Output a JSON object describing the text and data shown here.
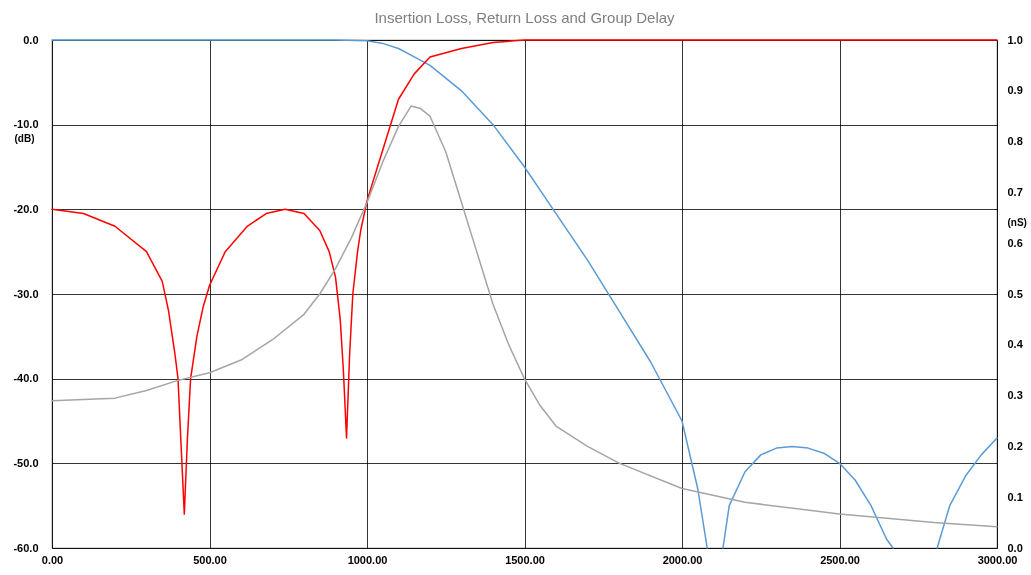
{
  "chart_data": {
    "type": "line",
    "title": "Insertion Loss, Return Loss and Group Delay",
    "ylabel": "(dB)",
    "y2label": "(nS)",
    "xlim": [
      0,
      3000
    ],
    "xticks": [
      {
        "value": 0,
        "label": "0.00"
      },
      {
        "value": 500,
        "label": "500.00"
      },
      {
        "value": 1000,
        "label": "1000.00"
      },
      {
        "value": 1500,
        "label": "1500.00"
      },
      {
        "value": 2000,
        "label": "2000.00"
      },
      {
        "value": 2500,
        "label": "2500.00"
      },
      {
        "value": 3000,
        "label": "3000.00"
      }
    ],
    "ylim": [
      -60,
      0
    ],
    "yticks": [
      {
        "value": -60,
        "label": "-60.0"
      },
      {
        "value": -50,
        "label": "-50.0"
      },
      {
        "value": -40,
        "label": "-40.0"
      },
      {
        "value": -30,
        "label": "-30.0"
      },
      {
        "value": -20,
        "label": "-20.0"
      },
      {
        "value": -10,
        "label": "-10.0"
      },
      {
        "value": 0,
        "label": "0.0"
      }
    ],
    "y2lim": [
      0,
      1
    ],
    "y2ticks": [
      {
        "value": 0,
        "label": "0.0"
      },
      0.1,
      0.2,
      0.3,
      0.4,
      0.5,
      0.6,
      0.7,
      0.8,
      0.9,
      {
        "value": 1,
        "label": "1.0"
      }
    ],
    "grid": true,
    "marker": "none",
    "line_style": "solid",
    "series": [
      {
        "type": "line",
        "color": "#5b9bd5",
        "x": [
          0,
          500,
          900,
          1000,
          1050,
          1100,
          1150,
          1200,
          1300,
          1400,
          1500,
          1600,
          1700,
          1800,
          1900,
          2000,
          2050,
          2080,
          2100,
          2130,
          2150,
          2200,
          2250,
          2300,
          2350,
          2400,
          2450,
          2500,
          2550,
          2600,
          2650,
          2670,
          2750,
          2810,
          2850,
          2900,
          2950,
          3000
        ],
        "values": [
          0,
          0,
          0,
          -0.1,
          -0.4,
          -1,
          -2,
          -3,
          -6,
          -10,
          -15,
          -20.5,
          -26,
          -32,
          -38,
          -45,
          -53,
          -60,
          null,
          -60,
          -55,
          -51,
          -49,
          -48.2,
          -48,
          -48.2,
          -48.8,
          -50,
          -52,
          -55,
          -59,
          -60,
          null,
          -60,
          -55,
          -51.5,
          -49,
          -47
        ]
      },
      {
        "type": "line",
        "color": "#ff0000",
        "x": [
          0,
          100,
          200,
          300,
          350,
          370,
          390,
          400,
          410,
          420,
          430,
          440,
          460,
          480,
          500,
          550,
          620,
          680,
          740,
          800,
          850,
          880,
          900,
          915,
          925,
          935,
          945,
          955,
          970,
          980,
          1000,
          1050,
          1100,
          1150,
          1200,
          1300,
          1400,
          1500,
          2000,
          3000
        ],
        "values": [
          -20,
          -20.5,
          -22,
          -25,
          -28.5,
          -32,
          -37,
          -40,
          -48,
          -56,
          -47,
          -40,
          -35,
          -31.5,
          -29,
          -25,
          -22,
          -20.5,
          -20,
          -20.5,
          -22.5,
          -25,
          -28,
          -33,
          -39,
          -47,
          -37,
          -30,
          -25,
          -22.5,
          -19,
          -13,
          -7,
          -4,
          -2,
          -1,
          -0.3,
          0,
          0,
          0
        ]
      },
      {
        "type": "line",
        "color": "#a5a5a5",
        "axis": "y2",
        "x": [
          0,
          200,
          300,
          400,
          500,
          600,
          700,
          800,
          850,
          900,
          950,
          1000,
          1050,
          1100,
          1140,
          1170,
          1200,
          1250,
          1300,
          1350,
          1400,
          1450,
          1500,
          1550,
          1600,
          1700,
          1800,
          2000,
          2200,
          2500,
          2800,
          3000
        ],
        "values": [
          0.29,
          0.295,
          0.31,
          0.33,
          0.345,
          0.37,
          0.41,
          0.46,
          0.5,
          0.55,
          0.61,
          0.68,
          0.76,
          0.83,
          0.87,
          0.865,
          0.85,
          0.78,
          0.68,
          0.58,
          0.48,
          0.4,
          0.333,
          0.28,
          0.24,
          0.2,
          0.167,
          0.117,
          0.09,
          0.067,
          0.05,
          0.042
        ]
      }
    ]
  }
}
